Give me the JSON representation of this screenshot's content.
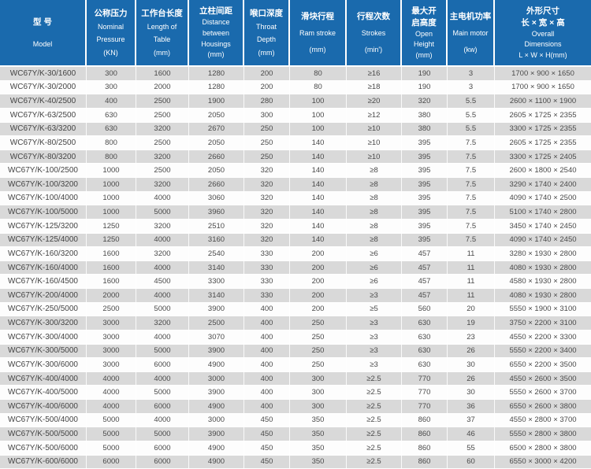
{
  "colors": {
    "header_bg": "#1a6aad",
    "header_text": "#ffffff",
    "row_odd_bg": "#d9d9d9",
    "row_even_bg": "#fdfdfd",
    "cell_text": "#4a4a4a"
  },
  "chart_data": {
    "type": "table",
    "title": "WC67Y/K hydraulic press brake specification table",
    "columns": [
      {
        "id": "model",
        "zh": [
          "型 号"
        ],
        "en": [
          "Model"
        ]
      },
      {
        "id": "nominal-pressure",
        "zh": [
          "公称压力"
        ],
        "en": [
          "Nominal",
          "Pressure",
          "(KN)"
        ]
      },
      {
        "id": "table-length",
        "zh": [
          "工作台长度"
        ],
        "en": [
          "Length of",
          "Table",
          "(mm)"
        ]
      },
      {
        "id": "housing-distance",
        "zh": [
          "立柱间距"
        ],
        "en": [
          "Distance",
          "between",
          "Housings",
          "(mm)"
        ]
      },
      {
        "id": "throat-depth",
        "zh": [
          "喉口深度"
        ],
        "en": [
          "Throat",
          "Depth",
          "(mm)"
        ]
      },
      {
        "id": "ram-stroke",
        "zh": [
          "滑块行程"
        ],
        "en": [
          "Ram stroke",
          "(mm)"
        ]
      },
      {
        "id": "strokes",
        "zh": [
          "行程次数"
        ],
        "en": [
          "Strokes",
          "(min')"
        ]
      },
      {
        "id": "open-height",
        "zh": [
          "最大开",
          "启高度"
        ],
        "en": [
          "Open",
          "Height",
          "(mm)"
        ]
      },
      {
        "id": "main-motor",
        "zh": [
          "主电机功率"
        ],
        "en": [
          "Main motor",
          "(kw)"
        ]
      },
      {
        "id": "overall-dimensions",
        "zh": [
          "外形尺寸",
          "长 × 宽 × 高"
        ],
        "en": [
          "Overall",
          "Dimensions",
          "L × W × H(mm)"
        ]
      }
    ],
    "rows": [
      [
        "WC67Y/K-30/1600",
        "300",
        "1600",
        "1280",
        "200",
        "80",
        "≥16",
        "190",
        "3",
        "1700 × 900 × 1650"
      ],
      [
        "WC67Y/K-30/2000",
        "300",
        "2000",
        "1280",
        "200",
        "80",
        "≥18",
        "190",
        "3",
        "1700 × 900 × 1650"
      ],
      [
        "WC67Y/K-40/2500",
        "400",
        "2500",
        "1900",
        "280",
        "100",
        "≥20",
        "320",
        "5.5",
        "2600 × 1100 × 1900"
      ],
      [
        "WC67Y/K-63/2500",
        "630",
        "2500",
        "2050",
        "300",
        "100",
        "≥12",
        "380",
        "5.5",
        "2605 × 1725 × 2355"
      ],
      [
        "WC67Y/K-63/3200",
        "630",
        "3200",
        "2670",
        "250",
        "100",
        "≥10",
        "380",
        "5.5",
        "3300 × 1725 × 2355"
      ],
      [
        "WC67Y/K-80/2500",
        "800",
        "2500",
        "2050",
        "250",
        "140",
        "≥10",
        "395",
        "7.5",
        "2605 × 1725 × 2355"
      ],
      [
        "WC67Y/K-80/3200",
        "800",
        "3200",
        "2660",
        "250",
        "140",
        "≥10",
        "395",
        "7.5",
        "3300 × 1725 × 2405"
      ],
      [
        "WC67Y/K-100/2500",
        "1000",
        "2500",
        "2050",
        "320",
        "140",
        "≥8",
        "395",
        "7.5",
        "2600 × 1800 × 2540"
      ],
      [
        "WC67Y/K-100/3200",
        "1000",
        "3200",
        "2660",
        "320",
        "140",
        "≥8",
        "395",
        "7.5",
        "3290 × 1740 × 2400"
      ],
      [
        "WC67Y/K-100/4000",
        "1000",
        "4000",
        "3060",
        "320",
        "140",
        "≥8",
        "395",
        "7.5",
        "4090 × 1740 × 2500"
      ],
      [
        "WC67Y/K-100/5000",
        "1000",
        "5000",
        "3960",
        "320",
        "140",
        "≥8",
        "395",
        "7.5",
        "5100 × 1740 × 2800"
      ],
      [
        "WC67Y/K-125/3200",
        "1250",
        "3200",
        "2510",
        "320",
        "140",
        "≥8",
        "395",
        "7.5",
        "3450 × 1740 × 2450"
      ],
      [
        "WC67Y/K-125/4000",
        "1250",
        "4000",
        "3160",
        "320",
        "140",
        "≥8",
        "395",
        "7.5",
        "4090 × 1740 × 2450"
      ],
      [
        "WC67Y/K-160/3200",
        "1600",
        "3200",
        "2540",
        "330",
        "200",
        "≥6",
        "457",
        "11",
        "3280 × 1930 × 2800"
      ],
      [
        "WC67Y/K-160/4000",
        "1600",
        "4000",
        "3140",
        "330",
        "200",
        "≥6",
        "457",
        "11",
        "4080 × 1930 × 2800"
      ],
      [
        "WC67Y/K-160/4500",
        "1600",
        "4500",
        "3300",
        "330",
        "200",
        "≥6",
        "457",
        "11",
        "4580 × 1930 × 2800"
      ],
      [
        "WC67Y/K-200/4000",
        "2000",
        "4000",
        "3140",
        "330",
        "200",
        "≥3",
        "457",
        "11",
        "4080 × 1930 × 2800"
      ],
      [
        "WC67Y/K-250/5000",
        "2500",
        "5000",
        "3900",
        "400",
        "200",
        "≥5",
        "560",
        "20",
        "5550 × 1900 × 3100"
      ],
      [
        "WC67Y/K-300/3200",
        "3000",
        "3200",
        "2500",
        "400",
        "250",
        "≥3",
        "630",
        "19",
        "3750 × 2200 × 3100"
      ],
      [
        "WC67Y/K-300/4000",
        "3000",
        "4000",
        "3070",
        "400",
        "250",
        "≥3",
        "630",
        "23",
        "4550 × 2200 × 3300"
      ],
      [
        "WC67Y/K-300/5000",
        "3000",
        "5000",
        "3900",
        "400",
        "250",
        "≥3",
        "630",
        "26",
        "5550 × 2200 × 3400"
      ],
      [
        "WC67Y/K-300/6000",
        "3000",
        "6000",
        "4900",
        "400",
        "250",
        "≥3",
        "630",
        "30",
        "6550 × 2200 × 3500"
      ],
      [
        "WC67Y/K-400/4000",
        "4000",
        "4000",
        "3000",
        "400",
        "300",
        "≥2.5",
        "770",
        "26",
        "4550 × 2600 × 3500"
      ],
      [
        "WC67Y/K-400/5000",
        "4000",
        "5000",
        "3900",
        "400",
        "300",
        "≥2.5",
        "770",
        "30",
        "5550 × 2600 × 3700"
      ],
      [
        "WC67Y/K-400/6000",
        "4000",
        "6000",
        "4900",
        "400",
        "300",
        "≥2.5",
        "770",
        "36",
        "6550 × 2600 × 3800"
      ],
      [
        "WC67Y/K-500/4000",
        "5000",
        "4000",
        "3000",
        "450",
        "350",
        "≥2.5",
        "860",
        "37",
        "4550 × 2800 × 3700"
      ],
      [
        "WC67Y/K-500/5000",
        "5000",
        "5000",
        "3900",
        "450",
        "350",
        "≥2.5",
        "860",
        "46",
        "5550 × 2800 × 3800"
      ],
      [
        "WC67Y/K-500/6000",
        "5000",
        "6000",
        "4900",
        "450",
        "350",
        "≥2.5",
        "860",
        "55",
        "6500 × 2800 × 3800"
      ],
      [
        "WC67Y/K-600/6000",
        "6000",
        "6000",
        "4900",
        "450",
        "350",
        "≥2.5",
        "860",
        "60",
        "6550 × 3000 × 4200"
      ]
    ]
  }
}
